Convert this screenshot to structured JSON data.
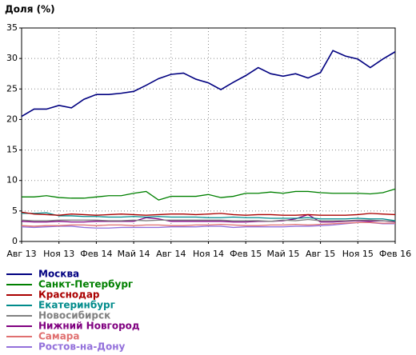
{
  "chart_data": {
    "type": "line",
    "title": "Доля (%)",
    "categories": [
      "Авг 13",
      null,
      null,
      "Ноя 13",
      null,
      null,
      "Фев 14",
      null,
      null,
      "Май 14",
      null,
      null,
      "Авг 14",
      null,
      null,
      "Ноя 14",
      null,
      null,
      "Фев 15",
      null,
      null,
      "Май 15",
      null,
      null,
      "Авг 15",
      null,
      null,
      "Ноя 15",
      null,
      null,
      "Фев 16"
    ],
    "ylim": [
      0,
      35
    ],
    "yticks": [
      0,
      5,
      10,
      15,
      20,
      25,
      30,
      35
    ],
    "grid": true,
    "series": [
      {
        "name": "Москва",
        "color": "#000080",
        "values": [
          20.5,
          21.7,
          21.7,
          22.3,
          21.9,
          23.3,
          24.1,
          24.1,
          24.3,
          24.6,
          25.6,
          26.7,
          27.4,
          27.6,
          26.6,
          26.0,
          24.9,
          26.1,
          27.2,
          28.5,
          27.5,
          27.1,
          27.5,
          26.8,
          27.7,
          31.3,
          30.4,
          29.9,
          28.5,
          29.9,
          31.1
        ]
      },
      {
        "name": "Санкт-Петербург",
        "color": "#008000",
        "values": [
          7.3,
          7.3,
          7.5,
          7.2,
          7.1,
          7.1,
          7.3,
          7.5,
          7.5,
          7.9,
          8.2,
          6.8,
          7.4,
          7.4,
          7.4,
          7.7,
          7.2,
          7.4,
          7.9,
          7.9,
          8.1,
          7.9,
          8.2,
          8.2,
          8.0,
          7.9,
          7.9,
          7.9,
          7.8,
          8.0,
          8.6
        ]
      },
      {
        "name": "Краснодар",
        "color": "#aa0000",
        "values": [
          4.8,
          4.5,
          4.4,
          4.3,
          4.5,
          4.4,
          4.3,
          4.4,
          4.5,
          4.4,
          4.3,
          4.4,
          4.5,
          4.5,
          4.4,
          4.5,
          4.6,
          4.4,
          4.3,
          4.4,
          4.4,
          4.3,
          4.3,
          4.4,
          4.3,
          4.3,
          4.3,
          4.4,
          4.6,
          4.5,
          4.4
        ]
      },
      {
        "name": "Екатеринбург",
        "color": "#008b8b",
        "values": [
          4.6,
          4.6,
          4.7,
          4.2,
          4.2,
          4.1,
          4.1,
          4.0,
          4.0,
          4.1,
          4.0,
          4.1,
          4.0,
          4.0,
          4.0,
          3.9,
          3.9,
          4.0,
          3.9,
          3.9,
          3.8,
          3.8,
          3.8,
          3.9,
          3.7,
          3.7,
          3.7,
          3.8,
          3.7,
          3.7,
          3.4
        ]
      },
      {
        "name": "Новосибирск",
        "color": "#808080",
        "values": [
          3.5,
          3.4,
          3.4,
          3.5,
          3.5,
          3.5,
          3.5,
          3.4,
          3.4,
          3.5,
          3.4,
          3.5,
          3.5,
          3.5,
          3.5,
          3.5,
          3.5,
          3.4,
          3.4,
          3.4,
          3.3,
          3.5,
          3.4,
          3.6,
          3.4,
          3.4,
          3.4,
          3.5,
          3.5,
          3.4,
          3.3
        ]
      },
      {
        "name": "Нижний Новгород",
        "color": "#800080",
        "values": [
          3.3,
          3.2,
          3.2,
          3.3,
          3.2,
          3.2,
          3.3,
          3.3,
          3.3,
          3.3,
          3.9,
          3.7,
          3.3,
          3.3,
          3.3,
          3.3,
          3.3,
          3.2,
          3.2,
          3.3,
          3.3,
          3.4,
          3.7,
          4.4,
          3.2,
          3.2,
          3.3,
          3.4,
          3.3,
          3.4,
          3.2
        ]
      },
      {
        "name": "Самара",
        "color": "#e07070",
        "values": [
          2.6,
          2.5,
          2.6,
          2.6,
          2.7,
          2.7,
          2.6,
          2.7,
          2.7,
          2.6,
          2.7,
          2.7,
          2.6,
          2.6,
          2.7,
          2.7,
          2.8,
          2.7,
          2.6,
          2.6,
          2.7,
          2.7,
          2.8,
          2.7,
          2.8,
          2.9,
          3.0,
          3.1,
          3.1,
          3.0,
          3.0
        ]
      },
      {
        "name": "Ростов-на-Дону",
        "color": "#9370db",
        "values": [
          2.4,
          2.3,
          2.4,
          2.5,
          2.5,
          2.3,
          2.2,
          2.2,
          2.3,
          2.3,
          2.3,
          2.3,
          2.4,
          2.4,
          2.4,
          2.5,
          2.5,
          2.3,
          2.4,
          2.4,
          2.4,
          2.4,
          2.5,
          2.5,
          2.6,
          2.7,
          2.9,
          3.1,
          3.1,
          2.9,
          2.9
        ]
      }
    ]
  }
}
